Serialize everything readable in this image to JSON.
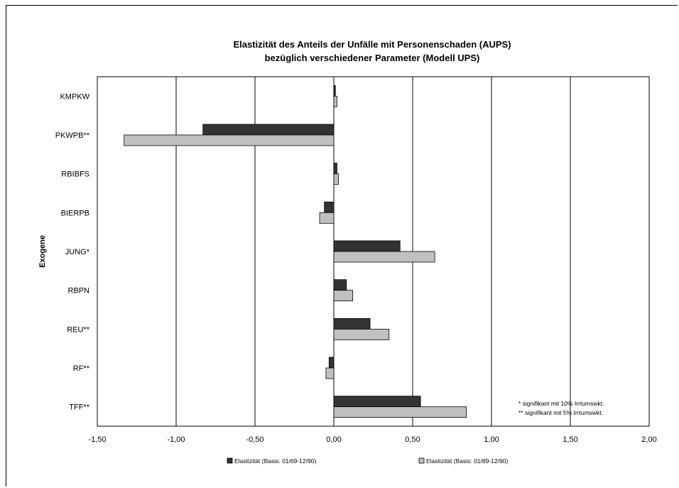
{
  "chart_data": {
    "type": "bar",
    "orientation": "horizontal",
    "title": [
      "Elastizität des Anteils der Unfälle mit Personenschaden (AUPS)",
      "bezüglich verschiedener Parameter (Modell UPS)"
    ],
    "ylabel": "Exogene",
    "xlabel": "",
    "categories": [
      "KMPKW",
      "PKWPB**",
      "RBIBFS",
      "BIERPB",
      "JUNG*",
      "RBPN",
      "REU**",
      "RF**",
      "TFF**"
    ],
    "xlim": [
      -1.5,
      2.0
    ],
    "xticks": [
      -1.5,
      -1.0,
      -0.5,
      0.0,
      0.5,
      1.0,
      1.5,
      2.0
    ],
    "xtick_labels": [
      "-1,50",
      "-1,00",
      "-0,50",
      "0,00",
      "0,50",
      "1,00",
      "1,50",
      "2,00"
    ],
    "grid": "vertical",
    "series": [
      {
        "name": "Elastizität (Basis: 01/69-12/90)",
        "color": "#333333",
        "values": [
          0.01,
          -0.83,
          0.02,
          -0.06,
          0.42,
          0.08,
          0.23,
          -0.03,
          0.55
        ]
      },
      {
        "name": "Elastizität (Basis: 01/89-12/90)",
        "color": "#c0c0c0",
        "values": [
          0.02,
          -1.33,
          0.03,
          -0.09,
          0.64,
          0.12,
          0.35,
          -0.05,
          0.84
        ]
      }
    ],
    "legend": "bottom",
    "annotations": [
      "* signifikant mit 10% Irrtumswkt.",
      "** signifikant mit 5% Irrtumswkt."
    ]
  }
}
